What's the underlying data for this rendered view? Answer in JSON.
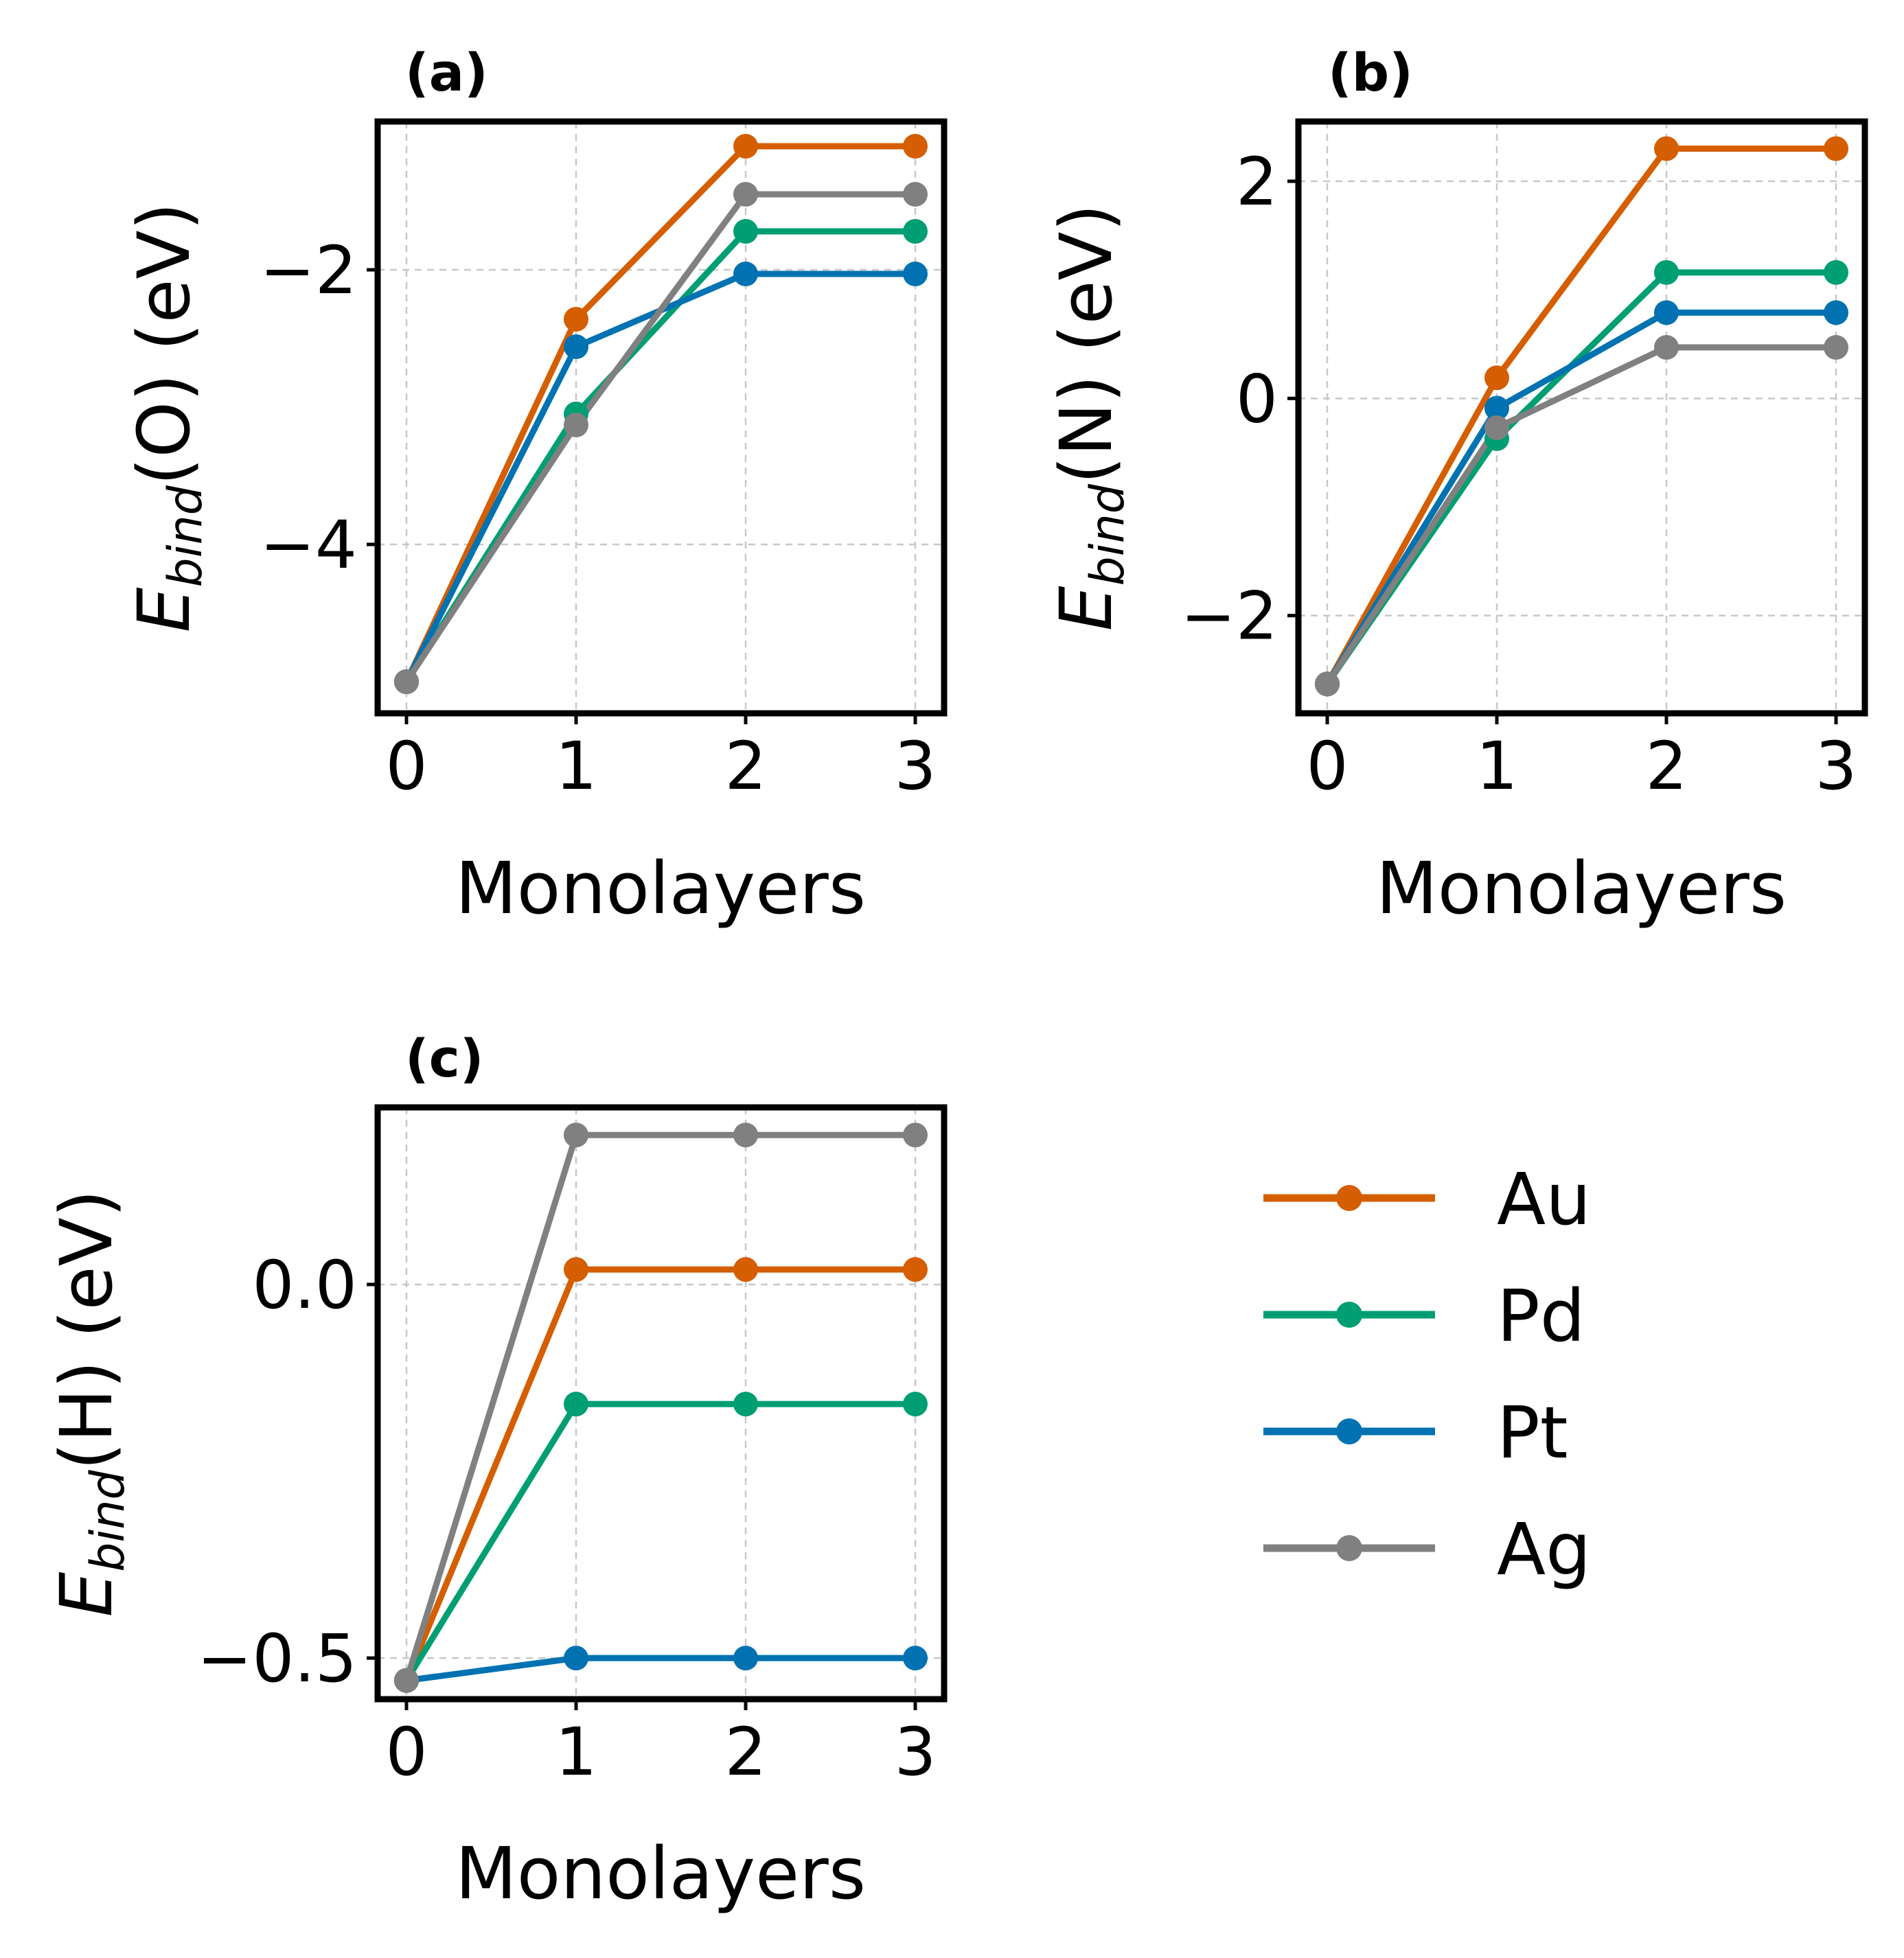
{
  "colors": {
    "Au": "#d55e00",
    "Pd": "#009e73",
    "Pt": "#0072b2",
    "Ag": "#808080"
  },
  "legend": [
    "Au",
    "Pd",
    "Pt",
    "Ag"
  ],
  "chart_data": [
    {
      "id": "a",
      "panel_label": "(a)",
      "type": "line",
      "ylabel_main": "E",
      "ylabel_sub": "bind",
      "ylabel_rest": "(O) (eV)",
      "xlabel": "Monolayers",
      "x": [
        0,
        1,
        2,
        3
      ],
      "xlim": [
        -0.17,
        3.17
      ],
      "ylim": [
        -5.23,
        -0.92
      ],
      "xticks": [
        0,
        1,
        2,
        3
      ],
      "xtick_labels": [
        "0",
        "1",
        "2",
        "3"
      ],
      "yticks": [
        -4,
        -2
      ],
      "ytick_labels": [
        "−4",
        "−2"
      ],
      "series": [
        {
          "name": "Au",
          "values": [
            -5.0,
            -2.36,
            -1.1,
            -1.1
          ]
        },
        {
          "name": "Pd",
          "values": [
            -5.0,
            -3.05,
            -1.72,
            -1.72
          ]
        },
        {
          "name": "Pt",
          "values": [
            -5.0,
            -2.56,
            -2.03,
            -2.03
          ]
        },
        {
          "name": "Ag",
          "values": [
            -5.0,
            -3.13,
            -1.45,
            -1.45
          ]
        }
      ]
    },
    {
      "id": "b",
      "panel_label": "(b)",
      "type": "line",
      "ylabel_main": "E",
      "ylabel_sub": "bind",
      "ylabel_rest": "(N) (eV)",
      "xlabel": "Monolayers",
      "x": [
        0,
        1,
        2,
        3
      ],
      "xlim": [
        -0.17,
        3.17
      ],
      "ylim": [
        -2.9,
        2.55
      ],
      "xticks": [
        0,
        1,
        2,
        3
      ],
      "xtick_labels": [
        "0",
        "1",
        "2",
        "3"
      ],
      "yticks": [
        -2,
        0,
        2
      ],
      "ytick_labels": [
        "−2",
        "0",
        "2"
      ],
      "series": [
        {
          "name": "Au",
          "values": [
            -2.63,
            0.19,
            2.3,
            2.3
          ]
        },
        {
          "name": "Pd",
          "values": [
            -2.63,
            -0.37,
            1.16,
            1.16
          ]
        },
        {
          "name": "Pt",
          "values": [
            -2.63,
            -0.09,
            0.79,
            0.79
          ]
        },
        {
          "name": "Ag",
          "values": [
            -2.63,
            -0.27,
            0.47,
            0.47
          ]
        }
      ]
    },
    {
      "id": "c",
      "panel_label": "(c)",
      "type": "line",
      "ylabel_main": "E",
      "ylabel_sub": "bind",
      "ylabel_rest": "(H) (eV)",
      "xlabel": "Monolayers",
      "x": [
        0,
        1,
        2,
        3
      ],
      "xlim": [
        -0.17,
        3.17
      ],
      "ylim": [
        -0.555,
        0.237
      ],
      "xticks": [
        0,
        1,
        2,
        3
      ],
      "xtick_labels": [
        "0",
        "1",
        "2",
        "3"
      ],
      "yticks": [
        -0.5,
        0.0
      ],
      "ytick_labels": [
        "−0.5",
        "0.0"
      ],
      "series": [
        {
          "name": "Au",
          "values": [
            -0.53,
            0.02,
            0.02,
            0.02
          ]
        },
        {
          "name": "Pd",
          "values": [
            -0.53,
            -0.16,
            -0.16,
            -0.16
          ]
        },
        {
          "name": "Pt",
          "values": [
            -0.53,
            -0.5,
            -0.5,
            -0.5
          ]
        },
        {
          "name": "Ag",
          "values": [
            -0.53,
            0.2,
            0.2,
            0.2
          ]
        }
      ]
    }
  ]
}
